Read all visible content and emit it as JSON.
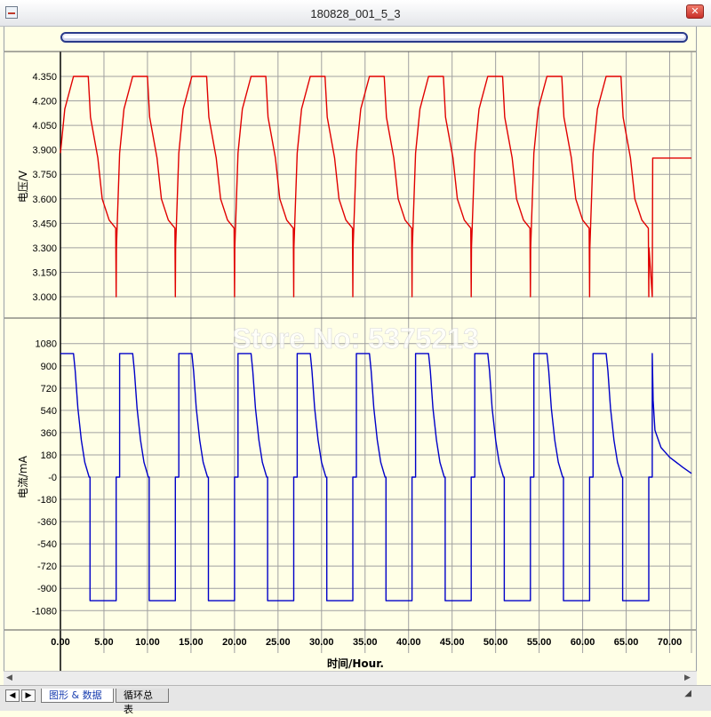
{
  "window": {
    "title": "180828_001_5_3"
  },
  "tabs": [
    {
      "label": "图形 & 数据",
      "active": true
    },
    {
      "label": "循环总表",
      "active": false
    }
  ],
  "watermark": "Store No: 5375213",
  "colors": {
    "voltage": "#e00000",
    "current": "#0000c8",
    "grid": "#a0a0a0",
    "background": "#ffffe6"
  },
  "chart_data": [
    {
      "type": "line",
      "ylabel": "电压/V",
      "ylim": [
        3.0,
        4.35
      ],
      "yticks": [
        "4.350",
        "4.200",
        "4.050",
        "3.900",
        "3.750",
        "3.600",
        "3.450",
        "3.300",
        "3.150",
        "3.000"
      ],
      "xlim": [
        0,
        72.5
      ],
      "series": [
        {
          "cycle_starts": [
            0,
            6.8,
            13.6,
            20.4,
            27.2,
            34.0,
            40.8,
            47.6,
            54.4,
            61.2
          ],
          "x": [
            0,
            0.5,
            1.5,
            2.3,
            3.2,
            3.45,
            4.3,
            4.8,
            5.6,
            6.35,
            6.4,
            6.43
          ],
          "y": [
            3.88,
            4.15,
            4.35,
            4.35,
            4.35,
            4.1,
            3.85,
            3.6,
            3.47,
            3.42,
            3.0,
            3.3
          ],
          "tail_x": [
            68.0,
            68.05,
            72.5
          ],
          "tail_y": [
            3.0,
            3.85,
            3.85
          ]
        }
      ]
    },
    {
      "type": "line",
      "ylabel": "电流/mA",
      "xlabel": "时间/Hour.",
      "ylim": [
        -1150,
        1150
      ],
      "yticks": [
        "1080",
        "900",
        "720",
        "540",
        "360",
        "180",
        "-0",
        "-180",
        "-360",
        "-540",
        "-720",
        "-900",
        "-1080"
      ],
      "xticks": [
        "0.00",
        "5.00",
        "10.00",
        "15.00",
        "20.00",
        "25.00",
        "30.00",
        "35.00",
        "40.00",
        "45.00",
        "50.00",
        "55.00",
        "60.00",
        "65.00",
        "70.00"
      ],
      "xlim": [
        0,
        72.5
      ],
      "series": [
        {
          "cycle_starts": [
            0,
            6.8,
            13.6,
            20.4,
            27.2,
            34.0,
            40.8,
            47.6,
            54.4,
            61.2
          ],
          "x": [
            0,
            1.5,
            1.7,
            2.0,
            2.4,
            2.8,
            3.3,
            3.4,
            3.4,
            4.3,
            4.3,
            6.4,
            6.4,
            6.8
          ],
          "y": [
            1000,
            1000,
            860,
            560,
            300,
            120,
            0,
            0,
            -1000,
            -1000,
            -1000,
            -1000,
            0,
            0
          ],
          "tail_x": [
            68.0,
            68.1,
            68.3,
            69.0,
            70.0,
            71.5,
            72.5
          ],
          "tail_y": [
            1000,
            620,
            380,
            240,
            160,
            80,
            30
          ]
        }
      ]
    }
  ]
}
